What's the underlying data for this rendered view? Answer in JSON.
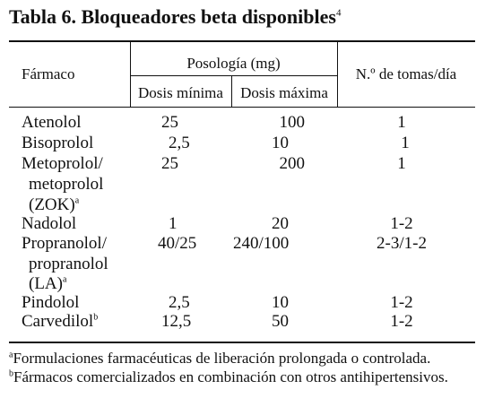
{
  "title": {
    "text": "Tabla 6. Bloqueadores beta disponibles",
    "ref": "4"
  },
  "header": {
    "farmaco": "Fármaco",
    "posologia": "Posología (mg)",
    "dosis_min": "Dosis mínima",
    "dosis_max": "Dosis máxima",
    "tomas": "N.º de tomas/día"
  },
  "rows": [
    {
      "drug": [
        "Atenolol"
      ],
      "min": "25",
      "max": "100",
      "tomas": "1"
    },
    {
      "drug": [
        "Bisoprolol"
      ],
      "min": "2,5",
      "max": "10",
      "tomas": "1"
    },
    {
      "drug": [
        "Metoprolol/",
        "metoprolol",
        "(ZOK)"
      ],
      "note": "a",
      "min": "25",
      "max": "200",
      "tomas": "1"
    },
    {
      "drug": [
        "Nadolol"
      ],
      "min": "1",
      "max": "20",
      "tomas": "1-2"
    },
    {
      "drug": [
        "Propranolol/",
        "propranolol",
        "(LA)"
      ],
      "note": "a",
      "min": "40/25",
      "max": "240/100",
      "tomas": "2-3/1-2"
    },
    {
      "drug": [
        "Pindolol"
      ],
      "min": "2,5",
      "max": "10",
      "tomas": "1-2"
    },
    {
      "drug": [
        "Carvedilol"
      ],
      "note": "b",
      "min": "12,5",
      "max": "50",
      "tomas": "1-2"
    }
  ],
  "footnotes": [
    {
      "mark": "a",
      "text": "Formulaciones farmacéuticas de liberación prolongada o controlada."
    },
    {
      "mark": "b",
      "text": "Fármacos comercializados en combinación con otros antihipertensivos."
    }
  ]
}
